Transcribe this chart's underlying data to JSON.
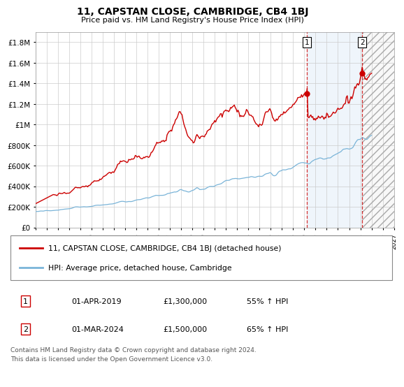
{
  "title": "11, CAPSTAN CLOSE, CAMBRIDGE, CB4 1BJ",
  "subtitle": "Price paid vs. HM Land Registry's House Price Index (HPI)",
  "ylim": [
    0,
    1900000
  ],
  "yticks": [
    0,
    200000,
    400000,
    600000,
    800000,
    1000000,
    1200000,
    1400000,
    1600000,
    1800000
  ],
  "ytick_labels": [
    "£0",
    "£200K",
    "£400K",
    "£600K",
    "£800K",
    "£1M",
    "£1.2M",
    "£1.4M",
    "£1.6M",
    "£1.8M"
  ],
  "hpi_color": "#7ab4d8",
  "price_color": "#cc0000",
  "background_color": "#ffffff",
  "grid_color": "#cccccc",
  "purchase1_date": 2019.25,
  "purchase1_price": 1300000,
  "purchase2_date": 2024.17,
  "purchase2_price": 1500000,
  "legend_label1": "11, CAPSTAN CLOSE, CAMBRIDGE, CB4 1BJ (detached house)",
  "legend_label2": "HPI: Average price, detached house, Cambridge",
  "table_row1": [
    "1",
    "01-APR-2019",
    "£1,300,000",
    "55% ↑ HPI"
  ],
  "table_row2": [
    "2",
    "01-MAR-2024",
    "£1,500,000",
    "65% ↑ HPI"
  ],
  "footer": "Contains HM Land Registry data © Crown copyright and database right 2024.\nThis data is licensed under the Open Government Licence v3.0.",
  "xmin": 1995,
  "xmax": 2027,
  "xtick_years": [
    1995,
    1996,
    1997,
    1998,
    1999,
    2000,
    2001,
    2002,
    2003,
    2004,
    2005,
    2006,
    2007,
    2008,
    2009,
    2010,
    2011,
    2012,
    2013,
    2014,
    2015,
    2016,
    2017,
    2018,
    2019,
    2020,
    2021,
    2022,
    2023,
    2024,
    2025,
    2026,
    2027
  ],
  "blue_fill_alpha": 0.18,
  "blue_fill_color": "#aaccee",
  "hatch_color": "#bbbbbb"
}
